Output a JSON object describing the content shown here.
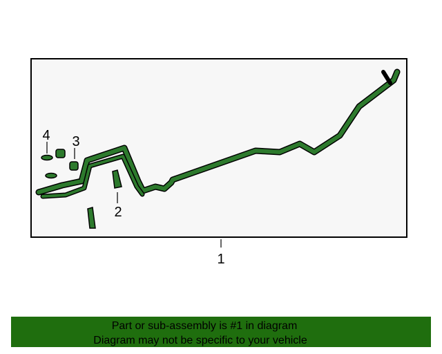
{
  "callouts": [
    "1",
    "2",
    "3",
    "4"
  ],
  "banner": {
    "line1": "Part or sub-assembly is #1 in diagram",
    "line2": "Diagram may not be specific to your vehicle"
  }
}
